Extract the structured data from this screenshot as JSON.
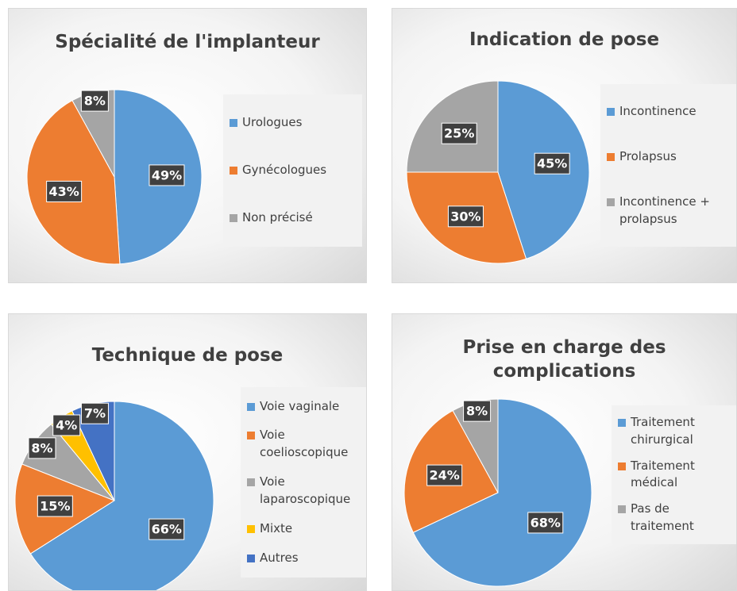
{
  "chart_data": [
    {
      "type": "pie",
      "title": "Spécialité de l'implanteur",
      "categories": [
        "Urologues",
        "Gynécologues",
        "Non précisé"
      ],
      "values": [
        49,
        43,
        8
      ],
      "value_labels": [
        "49%",
        "43%",
        "8%"
      ],
      "colors": [
        "#5b9bd5",
        "#ed7d31",
        "#a5a5a5"
      ]
    },
    {
      "type": "pie",
      "title": "Indication de pose",
      "categories": [
        "Incontinence",
        "Prolapsus",
        "Incontinence + prolapsus"
      ],
      "values": [
        45,
        30,
        25
      ],
      "value_labels": [
        "45%",
        "30%",
        "25%"
      ],
      "colors": [
        "#5b9bd5",
        "#ed7d31",
        "#a5a5a5"
      ]
    },
    {
      "type": "pie",
      "title": "Technique de pose",
      "categories": [
        "Voie vaginale",
        "Voie coelioscopique",
        "Voie laparoscopique",
        "Mixte",
        "Autres"
      ],
      "values": [
        66,
        15,
        8,
        4,
        7
      ],
      "value_labels": [
        "66%",
        "15%",
        "8%",
        "4%",
        "7%"
      ],
      "colors": [
        "#5b9bd5",
        "#ed7d31",
        "#a5a5a5",
        "#ffc000",
        "#4472c4"
      ]
    },
    {
      "type": "pie",
      "title": "Prise en charge des complications",
      "categories": [
        "Traitement chirurgical",
        "Traitement médical",
        "Pas de traitement"
      ],
      "values": [
        68,
        24,
        8
      ],
      "value_labels": [
        "68%",
        "24%",
        "8%"
      ],
      "colors": [
        "#5b9bd5",
        "#ed7d31",
        "#a5a5a5"
      ]
    }
  ]
}
